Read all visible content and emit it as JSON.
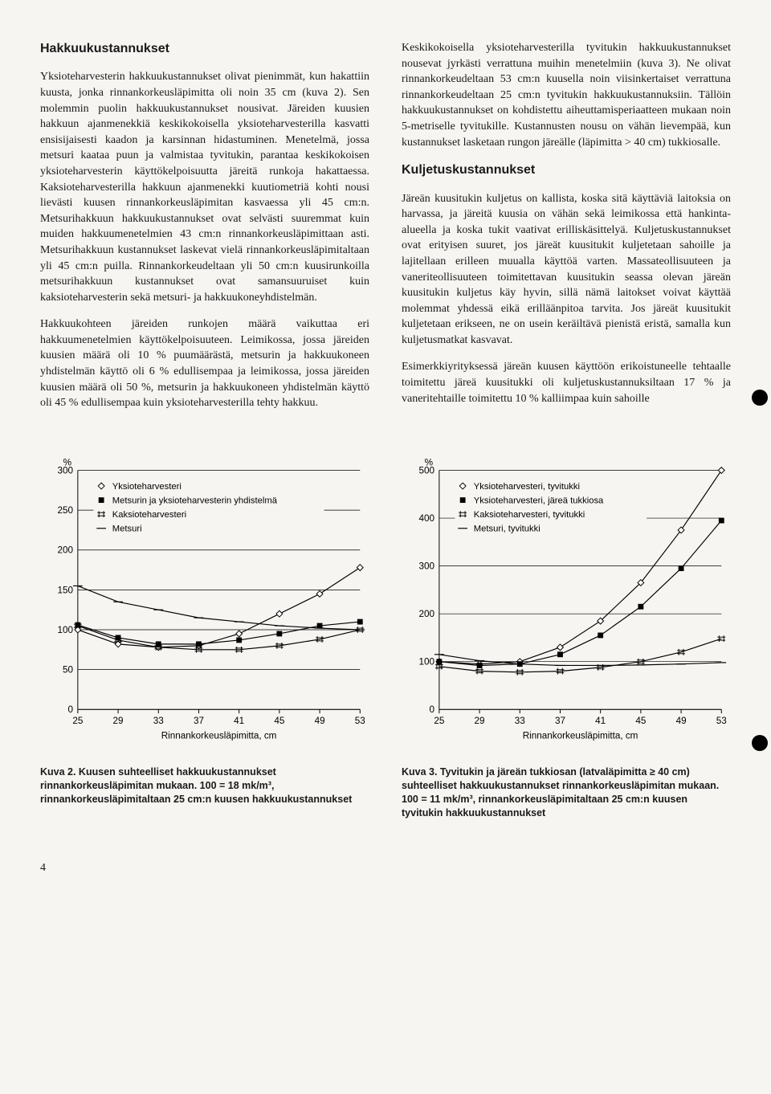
{
  "leftCol": {
    "heading1": "Hakkuukustannukset",
    "p1": "Yksioteharvesterin hakkuukustannukset olivat pienimmät, kun hakattiin kuusta, jonka rinnankorkeusläpimitta oli noin 35 cm (kuva 2). Sen molemmin puolin hakkuukustannukset nousivat. Järeiden kuusien hakkuun ajanmenekkiä keskikokoisella yksioteharvesterilla kasvatti ensisijaisesti kaadon ja karsinnan hidastuminen. Menetelmä, jossa metsuri kaataa puun ja valmistaa tyvitukin, parantaa keskikokoisen yksioteharvesterin käyttökelpoisuutta järeitä runkoja hakattaessa. Kaksioteharvesterilla hakkuun ajanmenekki kuutiometriä kohti nousi lievästi kuusen rinnankorkeusläpimitan kasvaessa yli 45 cm:n. Metsurihakkuun hakkuukustannukset ovat selvästi suuremmat kuin muiden hakkuumenetelmien 43 cm:n rinnankorkeusläpimittaan asti. Metsurihakkuun kustannukset laskevat vielä rinnankorkeusläpimitaltaan yli 45 cm:n puilla. Rinnankorkeudeltaan yli 50 cm:n kuusirunkoilla metsurihakkuun kustannukset ovat samansuuruiset kuin kaksioteharvesterin sekä metsuri- ja hakkuukoneyhdistelmän.",
    "p2": "Hakkuukohteen järeiden runkojen määrä vaikuttaa eri hakkuumenetelmien käyttökelpoisuuteen. Leimikossa, jossa järeiden kuusien määrä oli 10 % puumäärästä, metsurin ja hakkuukoneen yhdistelmän käyttö oli 6 % edullisempaa ja leimikossa, jossa järeiden kuusien määrä oli 50 %, metsurin ja hakkuukoneen yhdistelmän käyttö oli 45 % edullisempaa kuin yksioteharvesterilla tehty hakkuu."
  },
  "rightCol": {
    "p1": "Keskikokoisella yksioteharvesterilla tyvitukin hakkuukustannukset nousevat jyrkästi verrattuna muihin menetelmiin (kuva 3). Ne olivat rinnankorkeudeltaan 53 cm:n kuusella noin viisinkertaiset verrattuna rinnankorkeudeltaan 25 cm:n tyvitukin hakkuukustannuksiin. Tällöin hakkuukustannukset on kohdistettu aiheuttamisperiaatteen mukaan noin 5-metriselle tyvitukille. Kustannusten nousu on vähän lievempää, kun kustannukset lasketaan rungon järeälle (läpimitta > 40 cm) tukkiosalle.",
    "heading2": "Kuljetuskustannukset",
    "p2": "Järeän kuusitukin kuljetus on kallista, koska sitä käyttäviä laitoksia on harvassa, ja järeitä kuusia on vähän sekä leimikossa että hankinta-alueella ja koska tukit vaativat erilliskäsittelyä. Kuljetuskustannukset ovat erityisen suuret, jos järeät kuusitukit kuljetetaan sahoille ja lajitellaan erilleen muualla käyttöä varten. Massateollisuuteen ja vaneriteollisuuteen toimitettavan kuusitukin seassa olevan järeän kuusitukin kuljetus käy hyvin, sillä nämä laitokset voivat käyttää molemmat yhdessä eikä erilläänpitoa tarvita. Jos järeät kuusitukit kuljetetaan erikseen, ne on usein keräiltävä pienistä eristä, samalla kun kuljetusmatkat kasvavat.",
    "p3": "Esimerkkiyrityksessä järeän kuusen käyttöön erikoistuneelle tehtaalle toimitettu järeä kuusitukki oli kuljetuskustannuksiltaan 17 % ja vaneritehtaille toimitettu 10 % kalliimpaa kuin sahoille"
  },
  "chart2": {
    "type": "line",
    "xLabel": "Rinnankorkeusläpimitta, cm",
    "yUnit": "%",
    "xTicks": [
      25,
      29,
      33,
      37,
      41,
      45,
      49,
      53
    ],
    "yTicks": [
      0,
      50,
      100,
      150,
      200,
      250,
      300
    ],
    "ylim": [
      0,
      300
    ],
    "xlim": [
      25,
      53
    ],
    "legend": [
      {
        "label": "Yksioteharvesteri",
        "marker": "diamond-open"
      },
      {
        "label": "Metsurin ja yksioteharvesterin yhdistelmä",
        "marker": "square-filled"
      },
      {
        "label": "Kaksioteharvesteri",
        "marker": "hash"
      },
      {
        "label": "Metsuri",
        "marker": "line"
      }
    ],
    "series": [
      {
        "name": "yksiote",
        "values": [
          [
            25,
            100
          ],
          [
            29,
            82
          ],
          [
            33,
            78
          ],
          [
            37,
            80
          ],
          [
            41,
            95
          ],
          [
            45,
            120
          ],
          [
            49,
            145
          ],
          [
            53,
            178
          ]
        ]
      },
      {
        "name": "yhd",
        "values": [
          [
            25,
            106
          ],
          [
            29,
            90
          ],
          [
            33,
            82
          ],
          [
            37,
            82
          ],
          [
            41,
            87
          ],
          [
            45,
            95
          ],
          [
            49,
            105
          ],
          [
            53,
            110
          ]
        ]
      },
      {
        "name": "kaksiote",
        "values": [
          [
            25,
            105
          ],
          [
            29,
            87
          ],
          [
            33,
            78
          ],
          [
            37,
            75
          ],
          [
            41,
            75
          ],
          [
            45,
            80
          ],
          [
            49,
            88
          ],
          [
            53,
            100
          ]
        ]
      },
      {
        "name": "metsuri",
        "values": [
          [
            25,
            155
          ],
          [
            29,
            135
          ],
          [
            33,
            125
          ],
          [
            37,
            115
          ],
          [
            41,
            110
          ],
          [
            45,
            105
          ],
          [
            49,
            102
          ],
          [
            53,
            100
          ]
        ]
      }
    ],
    "colors": {
      "stroke": "#000000",
      "grid": "#000000",
      "text": "#000000"
    },
    "caption": "Kuva 2. Kuusen suhteelliset hakkuukustannukset rinnankorkeusläpimitan mukaan. 100 = 18 mk/m³, rinnankorkeusläpimitaltaan 25 cm:n kuusen hakkuukustannukset"
  },
  "chart3": {
    "type": "line",
    "xLabel": "Rinnankorkeusläpimitta, cm",
    "yUnit": "%",
    "xTicks": [
      25,
      29,
      33,
      37,
      41,
      45,
      49,
      53
    ],
    "yTicks": [
      0,
      100,
      200,
      300,
      400,
      500
    ],
    "ylim": [
      0,
      500
    ],
    "xlim": [
      25,
      53
    ],
    "legend": [
      {
        "label": "Yksioteharvesteri, tyvitukki",
        "marker": "diamond-open"
      },
      {
        "label": "Yksioteharvesteri, järeä tukkiosa",
        "marker": "square-filled"
      },
      {
        "label": "Kaksioteharvesteri, tyvitukki",
        "marker": "hash"
      },
      {
        "label": "Metsuri, tyvitukki",
        "marker": "line"
      }
    ],
    "series": [
      {
        "name": "yks-tyvi",
        "values": [
          [
            25,
            100
          ],
          [
            29,
            95
          ],
          [
            33,
            100
          ],
          [
            37,
            130
          ],
          [
            41,
            185
          ],
          [
            45,
            265
          ],
          [
            49,
            375
          ],
          [
            53,
            500
          ]
        ]
      },
      {
        "name": "yks-jarea",
        "values": [
          [
            25,
            100
          ],
          [
            29,
            92
          ],
          [
            33,
            95
          ],
          [
            37,
            115
          ],
          [
            41,
            155
          ],
          [
            45,
            215
          ],
          [
            49,
            295
          ],
          [
            53,
            395
          ]
        ]
      },
      {
        "name": "kaksi-tyvi",
        "values": [
          [
            25,
            90
          ],
          [
            29,
            80
          ],
          [
            33,
            78
          ],
          [
            37,
            80
          ],
          [
            41,
            88
          ],
          [
            45,
            100
          ],
          [
            49,
            120
          ],
          [
            53,
            148
          ]
        ]
      },
      {
        "name": "metsuri-tyvi",
        "values": [
          [
            25,
            115
          ],
          [
            29,
            102
          ],
          [
            33,
            95
          ],
          [
            37,
            92
          ],
          [
            41,
            92
          ],
          [
            45,
            93
          ],
          [
            49,
            95
          ],
          [
            53,
            98
          ]
        ]
      }
    ],
    "colors": {
      "stroke": "#000000",
      "grid": "#000000",
      "text": "#000000"
    },
    "caption": "Kuva 3. Tyvitukin ja järeän tukkiosan (latvaläpimitta ≥ 40 cm) suhteelliset hakkuukustannukset rinnankorkeusläpimitan mukaan. 100 = 11 mk/m³, rinnankorkeusläpimitaltaan 25 cm:n kuusen tyvitukin hakkuukustannukset"
  },
  "pageNumber": "4"
}
